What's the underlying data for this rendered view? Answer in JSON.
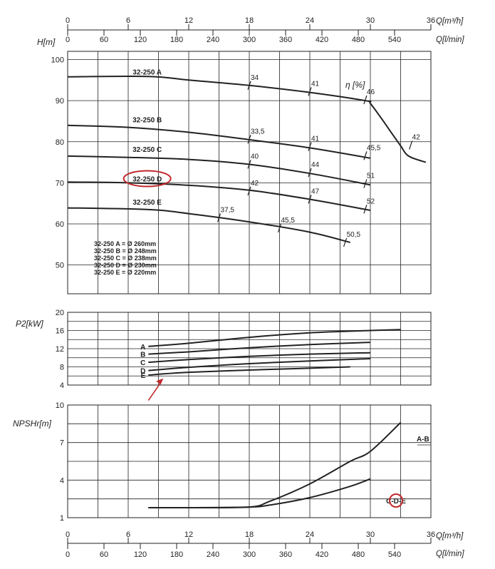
{
  "scales": {
    "q_m3h_label": "Q[m³/h]",
    "q_lmin_label": "Q[l/min]",
    "q_m3h_ticks": [
      "0",
      "6",
      "12",
      "18",
      "24",
      "30",
      "36"
    ],
    "q_lmin_ticks": [
      "0",
      "60",
      "120",
      "180",
      "240",
      "300",
      "360",
      "420",
      "480",
      "540"
    ]
  },
  "chart_data": [
    {
      "type": "line",
      "title": "",
      "ylabel": "H[m]",
      "xlabel": "Q[m³/h]",
      "xlim": [
        0,
        36
      ],
      "ylim": [
        43,
        102
      ],
      "yticks": [
        "50",
        "60",
        "70",
        "80",
        "90",
        "100"
      ],
      "eff_label": "η [%]",
      "series": [
        {
          "name": "32-250 A",
          "label_q": 5.2,
          "label_h": 97.2,
          "x": [
            0,
            8,
            12,
            18,
            24,
            29.5,
            30,
            31,
            32,
            33,
            33.8,
            35.5
          ],
          "y": [
            95.8,
            95.9,
            95.0,
            93.7,
            92.0,
            90.0,
            89.3,
            86.0,
            82.5,
            79.0,
            76.5,
            75.0
          ]
        },
        {
          "name": "32-250 B",
          "label_q": 5.2,
          "label_h": 85.6,
          "x": [
            0,
            6,
            12,
            18,
            24,
            30
          ],
          "y": [
            84,
            83.5,
            82.3,
            80.5,
            78.5,
            76.0
          ]
        },
        {
          "name": "32-250 C",
          "label_q": 5.2,
          "label_h": 78.4,
          "x": [
            0,
            6,
            12,
            18,
            24,
            30
          ],
          "y": [
            76.5,
            76.2,
            75.7,
            74.5,
            72.3,
            69.5
          ]
        },
        {
          "name": "32-250 D",
          "label_q": 5.2,
          "label_h": 71.2,
          "x": [
            0,
            6,
            12,
            18,
            24,
            30
          ],
          "y": [
            70.2,
            70.0,
            69.4,
            68.2,
            66.0,
            63.3
          ]
        },
        {
          "name": "32-250 E",
          "label_q": 5.2,
          "label_h": 65.6,
          "x": [
            0,
            8,
            12,
            18,
            24,
            28
          ],
          "y": [
            63.9,
            63.5,
            62.5,
            60.5,
            58.0,
            55.5
          ]
        }
      ],
      "efficiency_marks": [
        {
          "label": "34",
          "q": 18,
          "h": 93.7
        },
        {
          "label": "41",
          "q": 24,
          "h": 92.2
        },
        {
          "label": "46",
          "q": 29.5,
          "h": 90.2
        },
        {
          "label": "42",
          "q": 34,
          "h": 79.2
        },
        {
          "label": "33,5",
          "q": 18,
          "h": 80.6
        },
        {
          "label": "41",
          "q": 24,
          "h": 78.8
        },
        {
          "label": "45,5",
          "q": 29.5,
          "h": 76.6
        },
        {
          "label": "40",
          "q": 18,
          "h": 74.5
        },
        {
          "label": "44",
          "q": 24,
          "h": 72.5
        },
        {
          "label": "51",
          "q": 29.5,
          "h": 69.8
        },
        {
          "label": "42",
          "q": 18,
          "h": 68.0
        },
        {
          "label": "47",
          "q": 24,
          "h": 66.0
        },
        {
          "label": "52",
          "q": 29.5,
          "h": 63.6
        },
        {
          "label": "37,5",
          "q": 15,
          "h": 61.5
        },
        {
          "label": "45,5",
          "q": 21,
          "h": 59.0
        },
        {
          "label": "50,5",
          "q": 27.5,
          "h": 55.5
        }
      ],
      "impeller_legend": [
        "32-250 A = Ø 260mm",
        "32-250 B = Ø 248mm",
        "32-250 C = Ø 238mm",
        "32-250 D = Ø 230mm",
        "32-250 E = Ø 220mm"
      ],
      "highlighted_series": "32-250 D"
    },
    {
      "type": "line",
      "title": "",
      "ylabel": "P2[kW]",
      "xlabel": "Q[m³/h]",
      "xlim": [
        0,
        36
      ],
      "ylim": [
        4,
        20
      ],
      "yticks": [
        "4",
        "8",
        "12",
        "16",
        "20"
      ],
      "series": [
        {
          "name": "A",
          "x": [
            8,
            12,
            18,
            24,
            30,
            33
          ],
          "y": [
            12.5,
            13.2,
            14.5,
            15.5,
            16.0,
            16.2
          ]
        },
        {
          "name": "B",
          "x": [
            8,
            12,
            18,
            24,
            30
          ],
          "y": [
            10.8,
            11.3,
            12.2,
            12.9,
            13.4
          ]
        },
        {
          "name": "C",
          "x": [
            8,
            12,
            18,
            24,
            30
          ],
          "y": [
            9.0,
            9.6,
            10.3,
            10.8,
            11.1
          ]
        },
        {
          "name": "D",
          "x": [
            8,
            12,
            18,
            24,
            30
          ],
          "y": [
            7.2,
            7.9,
            8.7,
            9.3,
            9.8
          ]
        },
        {
          "name": "E",
          "x": [
            8,
            12,
            18,
            24,
            28
          ],
          "y": [
            6.2,
            6.8,
            7.3,
            7.7,
            8.0
          ]
        }
      ],
      "arrow_target_series": "D"
    },
    {
      "type": "line",
      "title": "",
      "ylabel": "NPSHr[m]",
      "xlabel": "Q[m³/h]",
      "xlim": [
        0,
        36
      ],
      "ylim": [
        1,
        10
      ],
      "yticks": [
        "1",
        "4",
        "7",
        "10"
      ],
      "series": [
        {
          "name": "A-B",
          "x": [
            8,
            12,
            18,
            20,
            24,
            28,
            30,
            33
          ],
          "y": [
            1.8,
            1.8,
            1.85,
            2.3,
            3.7,
            5.5,
            6.3,
            8.6
          ]
        },
        {
          "name": "C-D-E",
          "x": [
            8,
            12,
            18,
            20,
            24,
            28,
            30
          ],
          "y": [
            1.8,
            1.8,
            1.85,
            2.0,
            2.6,
            3.5,
            4.1
          ]
        }
      ],
      "highlighted_series": "C-D-E"
    }
  ]
}
